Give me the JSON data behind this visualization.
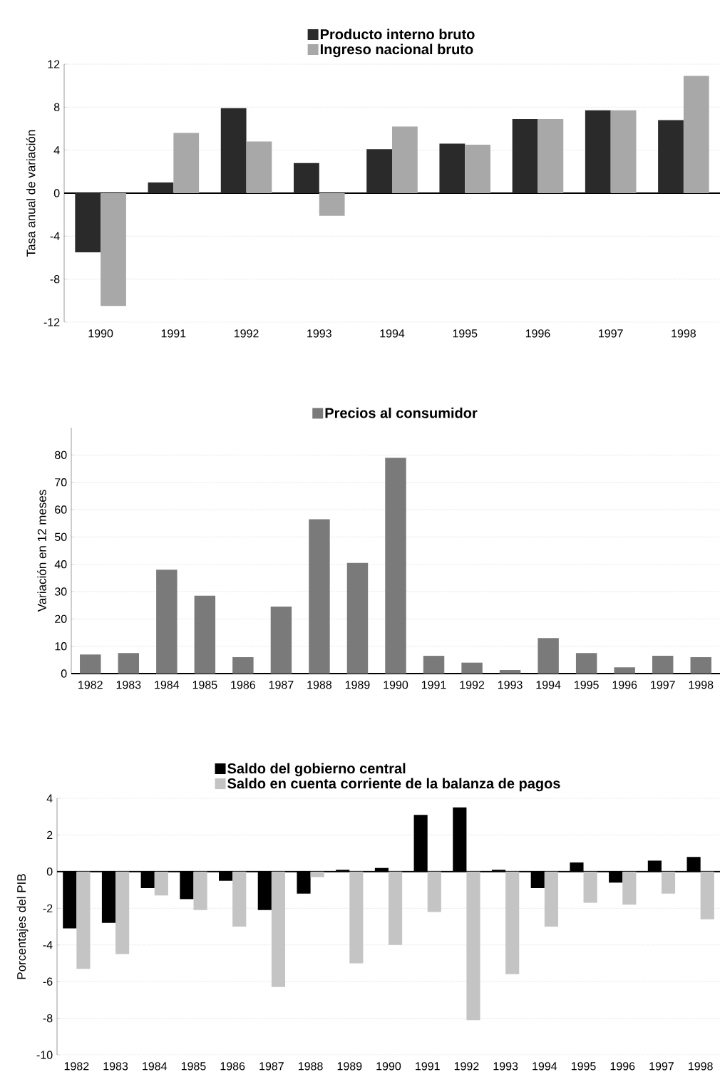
{
  "chart_data": [
    {
      "type": "bar",
      "categories": [
        "1990",
        "1991",
        "1992",
        "1993",
        "1994",
        "1995",
        "1996",
        "1997",
        "1998"
      ],
      "ylabel": "Tasa anual de variación",
      "ylim": [
        -12,
        12
      ],
      "yticks": [
        -12,
        -8,
        -4,
        0,
        4,
        8,
        12
      ],
      "grid": "y",
      "legend": "top",
      "series": [
        {
          "name": "Producto interno bruto",
          "color": "#2a2a2a",
          "values": [
            -5.5,
            1.0,
            7.9,
            2.8,
            4.1,
            4.6,
            6.9,
            7.7,
            6.8
          ]
        },
        {
          "name": "Ingreso nacional bruto",
          "color": "#a8a8a8",
          "values": [
            -10.5,
            5.6,
            4.8,
            -2.1,
            6.2,
            4.5,
            6.9,
            7.7,
            10.9
          ]
        }
      ]
    },
    {
      "type": "bar",
      "categories": [
        "1982",
        "1983",
        "1984",
        "1985",
        "1986",
        "1987",
        "1988",
        "1989",
        "1990",
        "1991",
        "1992",
        "1993",
        "1994",
        "1995",
        "1996",
        "1997",
        "1998"
      ],
      "ylabel": "Variación en 12 meses",
      "ylim": [
        0,
        90
      ],
      "yticks": [
        0,
        10,
        20,
        30,
        40,
        50,
        60,
        70,
        80
      ],
      "grid": "y",
      "legend": "top",
      "series": [
        {
          "name": "Precios al consumidor",
          "color": "#7a7a7a",
          "values": [
            7,
            7.5,
            38,
            28.5,
            6,
            24.5,
            56.5,
            40.5,
            79,
            6.5,
            4,
            1.3,
            13,
            7.5,
            2.3,
            6.5,
            6
          ]
        }
      ]
    },
    {
      "type": "bar",
      "categories": [
        "1982",
        "1983",
        "1984",
        "1985",
        "1986",
        "1987",
        "1988",
        "1989",
        "1990",
        "1991",
        "1992",
        "1993",
        "1994",
        "1995",
        "1996",
        "1997",
        "1998"
      ],
      "ylabel": "Porcentajes del PIB",
      "ylim": [
        -10,
        4
      ],
      "yticks": [
        -10,
        -8,
        -6,
        -4,
        -2,
        0,
        2,
        4
      ],
      "grid": "y",
      "legend": "top",
      "series": [
        {
          "name": "Saldo del gobierno central",
          "color": "#000000",
          "values": [
            -3.1,
            -2.8,
            -0.9,
            -1.5,
            -0.5,
            -2.1,
            -1.2,
            0.1,
            0.2,
            3.1,
            3.5,
            0.1,
            -0.9,
            0.5,
            -0.6,
            0.6,
            0.8
          ]
        },
        {
          "name": "Saldo en cuenta corriente de la balanza de pagos",
          "color": "#c4c4c4",
          "values": [
            -5.3,
            -4.5,
            -1.3,
            -2.1,
            -3.0,
            -6.3,
            -0.3,
            -5.0,
            -4.0,
            -2.2,
            -8.1,
            -5.6,
            -3.0,
            -1.7,
            -1.8,
            -1.2,
            -2.6
          ]
        }
      ]
    }
  ]
}
